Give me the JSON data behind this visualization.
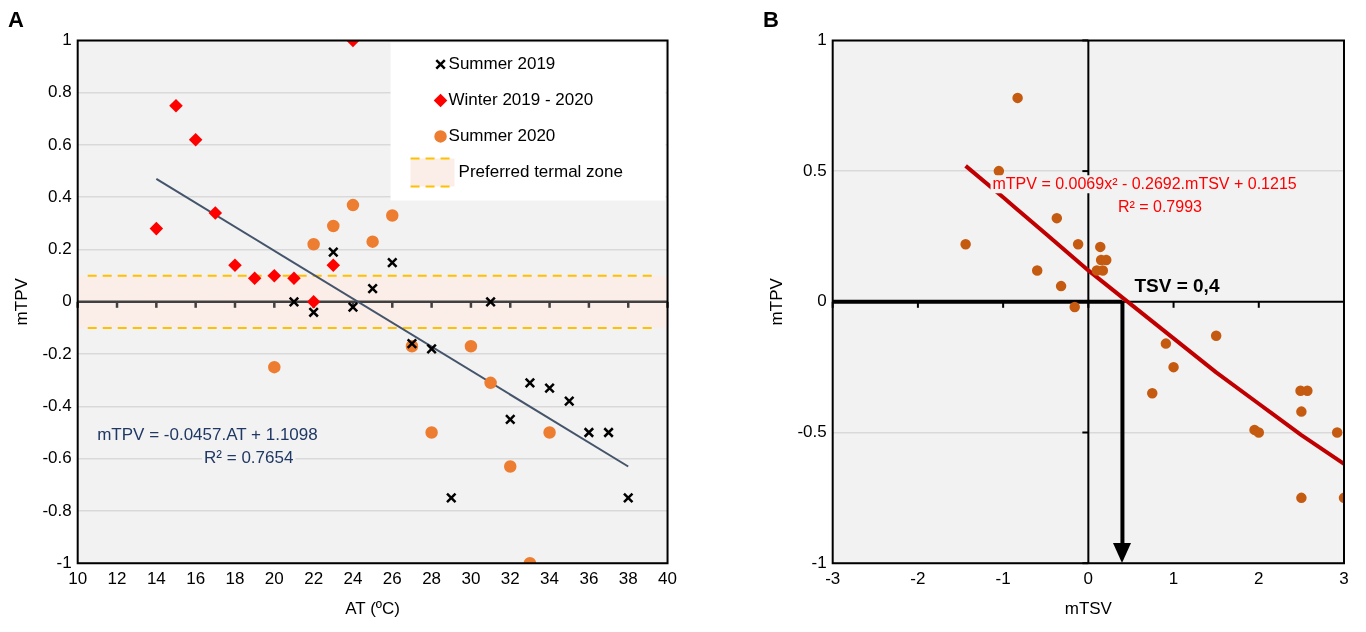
{
  "chart_data": [
    {
      "type": "scatter",
      "title": "A",
      "xlabel": "AT (ºC)",
      "ylabel": "mTPV",
      "xlim": [
        10,
        40
      ],
      "xticks": [
        10,
        12,
        14,
        16,
        18,
        20,
        22,
        24,
        26,
        28,
        30,
        32,
        34,
        36,
        38,
        40
      ],
      "ylim": [
        -1,
        1
      ],
      "yticks": [
        -1,
        -0.8,
        -0.6,
        -0.4,
        -0.2,
        0,
        0.2,
        0.4,
        0.6,
        0.8,
        1
      ],
      "grid": "y",
      "legend": "top right",
      "series": [
        {
          "name": "Summer 2019",
          "color": "#000000",
          "marker": "cross",
          "x": [
            21,
            22,
            23,
            24,
            25,
            26,
            27,
            28,
            29,
            31,
            32,
            33,
            34,
            35,
            36,
            37,
            38
          ],
          "values": [
            0,
            -0.04,
            0.19,
            -0.02,
            0.05,
            0.15,
            -0.16,
            -0.18,
            -0.75,
            0,
            -0.45,
            -0.31,
            -0.33,
            -0.38,
            -0.5,
            -0.5,
            -0.75
          ]
        },
        {
          "name": "Winter 2019 - 2020",
          "color": "#ff0000",
          "marker": "diamond",
          "x": [
            14,
            15,
            16,
            17,
            18,
            19,
            20,
            21,
            22,
            23,
            24
          ],
          "values": [
            0.28,
            0.75,
            0.62,
            0.34,
            0.14,
            0.09,
            0.1,
            0.09,
            0,
            0.14,
            1
          ]
        },
        {
          "name": "Summer 2020",
          "color": "#ed7d31",
          "marker": "circle",
          "x": [
            20,
            22,
            23,
            24,
            25,
            26,
            27,
            28,
            30,
            31,
            32,
            33,
            34
          ],
          "values": [
            -0.25,
            0.22,
            0.29,
            0.37,
            0.23,
            0.33,
            -0.17,
            -0.5,
            -0.17,
            -0.31,
            -0.63,
            -1,
            -0.5
          ]
        },
        {
          "type": "line",
          "color": "#44546a",
          "x": [
            14,
            38
          ],
          "values": [
            0.47,
            -0.63
          ]
        }
      ],
      "bands": [
        {
          "axis": "y",
          "from": -0.1,
          "to": 0.1,
          "label": "Preferred termal zone",
          "color": "#fbeee8"
        }
      ],
      "ref_lines": [
        {
          "axis": "y",
          "value": 0.1,
          "color": "#ffc000",
          "line_style": "dashed"
        },
        {
          "axis": "y",
          "value": -0.1,
          "color": "#ffc000",
          "line_style": "dashed"
        }
      ],
      "annotations": [
        "mTPV = -0.0457.AT + 1.1098",
        "R² = 0.7654"
      ]
    },
    {
      "type": "scatter",
      "title": "B",
      "xlabel": "mTSV",
      "ylabel": "mTPV",
      "xlim": [
        -3,
        3
      ],
      "xticks": [
        -3,
        -2,
        -1,
        0,
        1,
        2,
        3
      ],
      "ylim": [
        -1,
        1
      ],
      "yticks": [
        -1,
        -0.5,
        0,
        0.5,
        1
      ],
      "grid": "y",
      "series": [
        {
          "color": "#c55a11",
          "marker": "circle",
          "x": [
            -1.44,
            -1.05,
            -0.83,
            -0.6,
            -0.37,
            -0.32,
            -0.16,
            -0.12,
            0.1,
            0.14,
            0.15,
            0.17,
            0.21,
            0.75,
            0.91,
            1,
            1.5,
            1.95,
            2,
            2.49,
            2.5,
            2.5,
            2.57,
            2.92,
            3
          ],
          "values": [
            0.22,
            0.5,
            0.78,
            0.12,
            0.32,
            0.06,
            -0.02,
            0.22,
            0.12,
            0.21,
            0.16,
            0.12,
            0.16,
            -0.35,
            -0.16,
            -0.25,
            -0.13,
            -0.49,
            -0.5,
            -0.34,
            -0.42,
            -0.75,
            -0.34,
            -0.5,
            -0.75
          ]
        },
        {
          "type": "line",
          "color": "#c00000",
          "x": [
            -1.44,
            -1,
            -0.5,
            0,
            0.5,
            1,
            1.5,
            2,
            2.5,
            3
          ],
          "values": [
            0.52,
            0.4,
            0.26,
            0.12,
            -0.01,
            -0.14,
            -0.27,
            -0.39,
            -0.51,
            -0.62
          ]
        }
      ],
      "ref_lines": [
        {
          "axis": "x",
          "value": 0,
          "color": "#000000"
        },
        {
          "axis": "x",
          "value": 0.4,
          "label": "TSV = 0,4",
          "color": "#000000"
        }
      ],
      "annotations": [
        "mTPV = 0.0069x² - 0.2692.mTSV + 0.1215",
        "R² = 0.7993"
      ]
    }
  ]
}
